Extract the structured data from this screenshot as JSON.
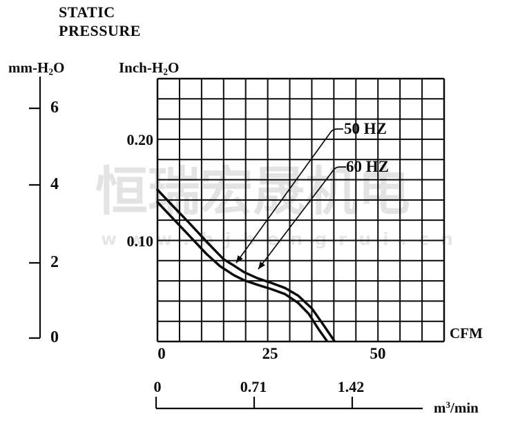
{
  "title": {
    "line1": "STATIC",
    "line2": "PRESSURE"
  },
  "axes": {
    "left_mm": {
      "label_parts": [
        "mm-H",
        "2",
        "O"
      ],
      "ticks": [
        "6",
        "4",
        "2",
        "0"
      ]
    },
    "left_inch": {
      "label_parts": [
        "Inch-H",
        "2",
        "O"
      ],
      "ticks": [
        "0.20",
        "0.10"
      ]
    },
    "bottom_cfm": {
      "unit": "CFM",
      "ticks": [
        "0",
        "25",
        "50"
      ]
    },
    "bottom_m3min": {
      "unit_parts": [
        "m",
        "3",
        "/min"
      ],
      "ticks": [
        "0",
        "0.71",
        "1.42"
      ]
    }
  },
  "series_labels": [
    {
      "text": "50 HZ"
    },
    {
      "text": "60 HZ"
    }
  ],
  "watermark": {
    "line1": "恒瑞宏晟机电",
    "line2": "www.bjhengrui.cn"
  },
  "colors": {
    "ink": "#0a0a0a",
    "watermark": "#e3e3e3"
  },
  "chart_data": {
    "type": "line",
    "title": "Static pressure vs airflow fan performance curves",
    "xlabel": "Airflow (CFM, m3/min)",
    "ylabel": "Static pressure (mm-H2O, Inch-H2O)",
    "x_range_cfm": [
      0,
      65
    ],
    "x_range_m3min": [
      0,
      1.85
    ],
    "y_range_mm": [
      0,
      6.8
    ],
    "y_range_inch": [
      0,
      0.26
    ],
    "grid": {
      "cols": 13,
      "rows": 13,
      "cfm_per_col": 5,
      "inch_per_row": 0.02,
      "grid_on": true
    },
    "x_ticks_cfm": [
      0,
      25,
      50
    ],
    "x_ticks_m3min": [
      0,
      0.71,
      1.42
    ],
    "y_ticks_mm": [
      0,
      2,
      4,
      6
    ],
    "y_ticks_inch": [
      0.1,
      0.2
    ],
    "legend_position": "annotated-arrows-inside-plot",
    "series": [
      {
        "name": "60 HZ",
        "points_cfm_mm": [
          [
            0,
            3.91
          ],
          [
            3.4,
            3.5
          ],
          [
            7.3,
            3.04
          ],
          [
            11.1,
            2.57
          ],
          [
            15,
            2.11
          ],
          [
            17.3,
            1.95
          ],
          [
            19.6,
            1.78
          ],
          [
            22.7,
            1.62
          ],
          [
            25.8,
            1.5
          ],
          [
            28.9,
            1.37
          ],
          [
            31.9,
            1.17
          ],
          [
            35,
            0.84
          ],
          [
            37.3,
            0.47
          ],
          [
            40.1,
            0
          ]
        ]
      },
      {
        "name": "50 HZ",
        "points_cfm_mm": [
          [
            0,
            3.59
          ],
          [
            3.4,
            3.18
          ],
          [
            7.3,
            2.71
          ],
          [
            11.1,
            2.25
          ],
          [
            14.2,
            1.93
          ],
          [
            17.3,
            1.7
          ],
          [
            19.6,
            1.57
          ],
          [
            22.7,
            1.45
          ],
          [
            25.8,
            1.34
          ],
          [
            28.9,
            1.21
          ],
          [
            31.9,
            0.98
          ],
          [
            34.3,
            0.7
          ],
          [
            36.6,
            0.29
          ],
          [
            38.4,
            0
          ]
        ]
      }
    ]
  }
}
